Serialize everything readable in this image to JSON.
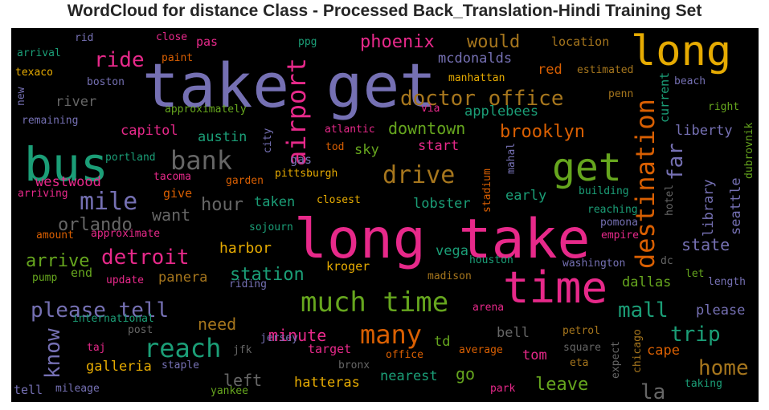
{
  "chart_data": {
    "type": "wordcloud",
    "title": "WordCloud for distance Class - Processed Back_Translation-Hindi Training Set",
    "background": "#000000",
    "palette": [
      "#1b9e77",
      "#d95f02",
      "#7570b3",
      "#e7298a",
      "#66a61e",
      "#e6ab02",
      "#a6761d",
      "#666666"
    ],
    "words": [
      {
        "text": "take get",
        "color": "#7570b3"
      },
      {
        "text": "long take",
        "color": "#e7298a"
      },
      {
        "text": "long",
        "color": "#e6ab02"
      },
      {
        "text": "bus",
        "color": "#1b9e77"
      },
      {
        "text": "time",
        "color": "#e7298a"
      },
      {
        "text": "get",
        "color": "#66a61e"
      },
      {
        "text": "much time",
        "color": "#66a61e"
      },
      {
        "text": "destination",
        "color": "#d95f02"
      },
      {
        "text": "reach",
        "color": "#1b9e77"
      },
      {
        "text": "many",
        "color": "#d95f02"
      },
      {
        "text": "airport",
        "color": "#e7298a"
      },
      {
        "text": "bank",
        "color": "#666666"
      },
      {
        "text": "drive",
        "color": "#a6761d"
      },
      {
        "text": "mile",
        "color": "#7570b3"
      },
      {
        "text": "doctor office",
        "color": "#a6761d"
      },
      {
        "text": "please tell",
        "color": "#7570b3"
      },
      {
        "text": "detroit",
        "color": "#e7298a"
      },
      {
        "text": "know",
        "color": "#7570b3"
      },
      {
        "text": "mall",
        "color": "#1b9e77"
      },
      {
        "text": "trip",
        "color": "#1b9e77"
      },
      {
        "text": "home",
        "color": "#a6761d"
      },
      {
        "text": "far",
        "color": "#7570b3"
      },
      {
        "text": "ride",
        "color": "#e7298a"
      },
      {
        "text": "phoenix",
        "color": "#e7298a"
      },
      {
        "text": "orlando",
        "color": "#666666"
      },
      {
        "text": "arrive",
        "color": "#66a61e"
      },
      {
        "text": "station",
        "color": "#1b9e77"
      },
      {
        "text": "la",
        "color": "#666666"
      },
      {
        "text": "brooklyn",
        "color": "#d95f02"
      },
      {
        "text": "downtown",
        "color": "#66a61e"
      },
      {
        "text": "hour",
        "color": "#666666"
      },
      {
        "text": "would",
        "color": "#a6761d"
      },
      {
        "text": "minute",
        "color": "#e7298a"
      },
      {
        "text": "state",
        "color": "#7570b3"
      },
      {
        "text": "need",
        "color": "#a6761d"
      },
      {
        "text": "leave",
        "color": "#66a61e"
      },
      {
        "text": "left",
        "color": "#666666"
      },
      {
        "text": "want",
        "color": "#666666"
      },
      {
        "text": "harbor",
        "color": "#e6ab02"
      },
      {
        "text": "go",
        "color": "#66a61e"
      },
      {
        "text": "library",
        "color": "#7570b3"
      },
      {
        "text": "seattle",
        "color": "#7570b3"
      },
      {
        "text": "liberty",
        "color": "#7570b3"
      },
      {
        "text": "austin",
        "color": "#1b9e77"
      },
      {
        "text": "capitol",
        "color": "#e7298a"
      },
      {
        "text": "westwood",
        "color": "#e7298a"
      },
      {
        "text": "lobster",
        "color": "#1b9e77"
      },
      {
        "text": "dallas",
        "color": "#66a61e"
      },
      {
        "text": "please",
        "color": "#7570b3"
      },
      {
        "text": "mcdonalds",
        "color": "#7570b3"
      },
      {
        "text": "applebees",
        "color": "#1b9e77"
      },
      {
        "text": "galleria",
        "color": "#e6ab02"
      },
      {
        "text": "hatteras",
        "color": "#e6ab02"
      },
      {
        "text": "nearest",
        "color": "#1b9e77"
      },
      {
        "text": "tom",
        "color": "#e7298a"
      },
      {
        "text": "cape",
        "color": "#d95f02"
      },
      {
        "text": "bell",
        "color": "#666666"
      },
      {
        "text": "td",
        "color": "#66a61e"
      },
      {
        "text": "red",
        "color": "#d95f02"
      },
      {
        "text": "location",
        "color": "#a6761d"
      },
      {
        "text": "river",
        "color": "#666666"
      },
      {
        "text": "gas",
        "color": "#7570b3"
      },
      {
        "text": "sky",
        "color": "#66a61e"
      },
      {
        "text": "start",
        "color": "#e7298a"
      },
      {
        "text": "taken",
        "color": "#1b9e77"
      },
      {
        "text": "early",
        "color": "#1b9e77"
      },
      {
        "text": "current",
        "color": "#1b9e77"
      },
      {
        "text": "vega",
        "color": "#1b9e77"
      },
      {
        "text": "kroger",
        "color": "#e6ab02"
      },
      {
        "text": "panera",
        "color": "#a6761d"
      },
      {
        "text": "end",
        "color": "#66a61e"
      },
      {
        "text": "target",
        "color": "#e7298a"
      },
      {
        "text": "give",
        "color": "#d95f02"
      },
      {
        "text": "pas",
        "color": "#e7298a"
      },
      {
        "text": "washington",
        "color": "#7570b3"
      },
      {
        "text": "texaco",
        "color": "#e6ab02"
      },
      {
        "text": "boston",
        "color": "#7570b3"
      },
      {
        "text": "arrival",
        "color": "#1b9e77"
      },
      {
        "text": "rid",
        "color": "#7570b3"
      },
      {
        "text": "close",
        "color": "#e7298a"
      },
      {
        "text": "paint",
        "color": "#d95f02"
      },
      {
        "text": "ppg",
        "color": "#1b9e77"
      },
      {
        "text": "manhattan",
        "color": "#e6ab02"
      },
      {
        "text": "estimated",
        "color": "#a6761d"
      },
      {
        "text": "beach",
        "color": "#7570b3"
      },
      {
        "text": "penn",
        "color": "#a6761d"
      },
      {
        "text": "right",
        "color": "#66a61e"
      },
      {
        "text": "new",
        "color": "#7570b3"
      },
      {
        "text": "remaining",
        "color": "#7570b3"
      },
      {
        "text": "approximately",
        "color": "#66a61e"
      },
      {
        "text": "via",
        "color": "#e7298a"
      },
      {
        "text": "atlantic",
        "color": "#e7298a"
      },
      {
        "text": "city",
        "color": "#7570b3"
      },
      {
        "text": "tod",
        "color": "#d95f02"
      },
      {
        "text": "portland",
        "color": "#1b9e77"
      },
      {
        "text": "tacoma",
        "color": "#e7298a"
      },
      {
        "text": "garden",
        "color": "#d95f02"
      },
      {
        "text": "pittsburgh",
        "color": "#e6ab02"
      },
      {
        "text": "mahal",
        "color": "#7570b3"
      },
      {
        "text": "stadium",
        "color": "#d95f02"
      },
      {
        "text": "building",
        "color": "#1b9e77"
      },
      {
        "text": "hotel",
        "color": "#666666"
      },
      {
        "text": "dubrovnik",
        "color": "#66a61e"
      },
      {
        "text": "arriving",
        "color": "#e7298a"
      },
      {
        "text": "closest",
        "color": "#e6ab02"
      },
      {
        "text": "reaching",
        "color": "#1b9e77"
      },
      {
        "text": "pomona",
        "color": "#7570b3"
      },
      {
        "text": "sojourn",
        "color": "#1b9e77"
      },
      {
        "text": "amount",
        "color": "#d95f02"
      },
      {
        "text": "approximate",
        "color": "#e7298a"
      },
      {
        "text": "empire",
        "color": "#e7298a"
      },
      {
        "text": "dc",
        "color": "#666666"
      },
      {
        "text": "houston",
        "color": "#1b9e77"
      },
      {
        "text": "pump",
        "color": "#66a61e"
      },
      {
        "text": "update",
        "color": "#e7298a"
      },
      {
        "text": "riding",
        "color": "#7570b3"
      },
      {
        "text": "madison",
        "color": "#a6761d"
      },
      {
        "text": "let",
        "color": "#66a61e"
      },
      {
        "text": "length",
        "color": "#7570b3"
      },
      {
        "text": "arena",
        "color": "#e7298a"
      },
      {
        "text": "international",
        "color": "#1b9e77"
      },
      {
        "text": "post",
        "color": "#666666"
      },
      {
        "text": "petrol",
        "color": "#a6761d"
      },
      {
        "text": "chicago",
        "color": "#a6761d"
      },
      {
        "text": "taj",
        "color": "#e7298a"
      },
      {
        "text": "jfk",
        "color": "#666666"
      },
      {
        "text": "jersey",
        "color": "#7570b3"
      },
      {
        "text": "staple",
        "color": "#7570b3"
      },
      {
        "text": "office",
        "color": "#d95f02"
      },
      {
        "text": "average",
        "color": "#d95f02"
      },
      {
        "text": "square",
        "color": "#666666"
      },
      {
        "text": "expect",
        "color": "#666666"
      },
      {
        "text": "eta",
        "color": "#a6761d"
      },
      {
        "text": "bronx",
        "color": "#666666"
      },
      {
        "text": "tell",
        "color": "#7570b3"
      },
      {
        "text": "mileage",
        "color": "#7570b3"
      },
      {
        "text": "yankee",
        "color": "#66a61e"
      },
      {
        "text": "park",
        "color": "#e7298a"
      },
      {
        "text": "taking",
        "color": "#1b9e77"
      }
    ]
  }
}
